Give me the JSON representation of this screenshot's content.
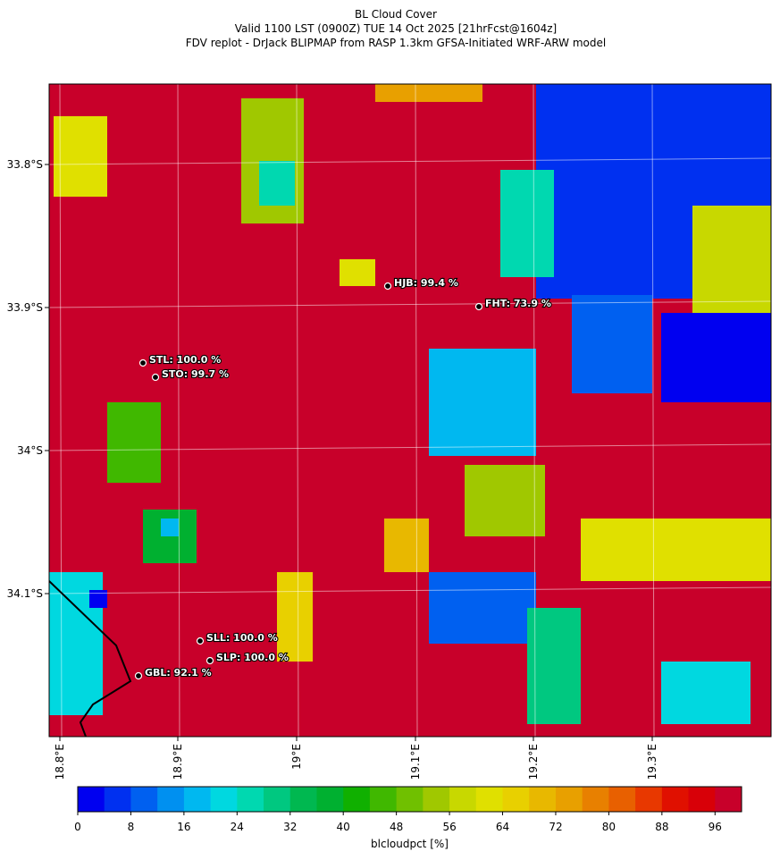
{
  "title_lines": [
    "BL Cloud Cover",
    "Valid 1100 LST (0900Z) TUE 14 Oct 2025 [21hrFcst@1604z]",
    "FDV replot - DrJack BLIPMAP from RASP 1.3km GFSA-Initiated WRF-ARW model"
  ],
  "map": {
    "lat_ticks": [
      "33.8°S",
      "33.9°S",
      "34°S",
      "34.1°S"
    ],
    "lon_ticks": [
      "18.8°E",
      "18.9°E",
      "19°E",
      "19.1°E",
      "19.2°E",
      "19.3°E"
    ],
    "stations": [
      "HJB: 99.4 %",
      "FHT: 73.9 %",
      "STL: 100.0 %",
      "STO: 99.7 %",
      "SLL: 100.0 %",
      "SLP: 100.0 %",
      "GBL: 92.1 %"
    ]
  },
  "colorbar": {
    "label": "blcloudpct [%]",
    "range": [
      0,
      100
    ],
    "ticks": [
      0,
      8,
      16,
      24,
      32,
      40,
      48,
      56,
      64,
      72,
      80,
      88,
      96
    ],
    "colors": [
      "#0000f0",
      "#0030f0",
      "#0060f0",
      "#0090f0",
      "#00b8f0",
      "#00d8e0",
      "#00d8b0",
      "#00c880",
      "#00b850",
      "#00b030",
      "#10b000",
      "#40b800",
      "#70c000",
      "#a0c800",
      "#c8d800",
      "#e0e000",
      "#e8d000",
      "#e8b800",
      "#e8a000",
      "#e88000",
      "#e86000",
      "#e83800",
      "#e01000",
      "#d80008",
      "#c8002a"
    ]
  }
}
